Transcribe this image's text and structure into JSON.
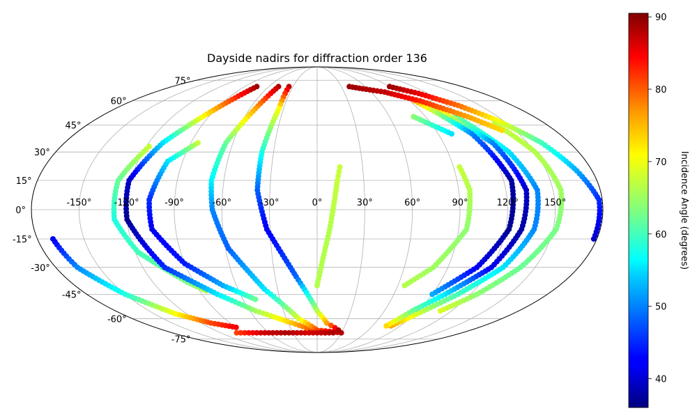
{
  "chart_data": {
    "type": "scatter",
    "projection": "mollweide",
    "title": "Dayside nadirs for diffraction order 136",
    "x_ticks": [
      "-150°",
      "-120°",
      "-90°",
      "-60°",
      "-30°",
      "0°",
      "30°",
      "60°",
      "90°",
      "120°",
      "150°"
    ],
    "x_tick_values": [
      -150,
      -120,
      -90,
      -60,
      -30,
      0,
      30,
      60,
      90,
      120,
      150
    ],
    "y_ticks": [
      "75°",
      "60°",
      "45°",
      "30°",
      "15°",
      "0°",
      "-15°",
      "-30°",
      "-45°",
      "-60°",
      "-75°"
    ],
    "y_tick_values": [
      75,
      60,
      45,
      30,
      15,
      0,
      -15,
      -30,
      -45,
      -60,
      -75
    ],
    "grid": true,
    "colorbar": {
      "label": "Incidence Angle (degrees)",
      "min": 36,
      "max": 90.5,
      "ticks": [
        "40",
        "50",
        "60",
        "70",
        "80",
        "90"
      ],
      "tick_values": [
        40,
        50,
        60,
        70,
        80,
        90
      ],
      "colormap": "jet"
    },
    "series": [
      {
        "points": [
          {
            "lon": 0,
            "lat": -40,
            "inc": 66
          },
          {
            "lon": 8,
            "lat": -10,
            "inc": 66
          },
          {
            "lon": 13,
            "lat": 15,
            "inc": 67
          },
          {
            "lon": 15,
            "lat": 22,
            "inc": 67
          }
        ]
      },
      {
        "points": [
          {
            "lon": 65,
            "lat": -40,
            "inc": 66
          },
          {
            "lon": 80,
            "lat": -30,
            "inc": 65
          },
          {
            "lon": 95,
            "lat": -10,
            "inc": 64
          },
          {
            "lon": 97,
            "lat": 10,
            "inc": 66
          },
          {
            "lon": 94,
            "lat": 22,
            "inc": 67
          }
        ]
      },
      {
        "points": [
          {
            "lon": -118,
            "lat": 33,
            "inc": 67
          },
          {
            "lon": -128,
            "lat": 15,
            "inc": 62
          },
          {
            "lon": -128,
            "lat": -5,
            "inc": 58
          },
          {
            "lon": -118,
            "lat": -22,
            "inc": 60
          },
          {
            "lon": -95,
            "lat": -38,
            "inc": 63
          },
          {
            "lon": -85,
            "lat": -43,
            "inc": 66
          }
        ]
      },
      {
        "points": [
          {
            "lon": -85,
            "lat": 35,
            "inc": 67
          },
          {
            "lon": -100,
            "lat": 25,
            "inc": 55
          },
          {
            "lon": -106,
            "lat": 5,
            "inc": 45
          },
          {
            "lon": -105,
            "lat": -10,
            "inc": 42
          },
          {
            "lon": -90,
            "lat": -28,
            "inc": 44
          },
          {
            "lon": -70,
            "lat": -40,
            "inc": 52
          },
          {
            "lon": -50,
            "lat": -48,
            "inc": 62
          }
        ]
      },
      {
        "points": [
          {
            "lon": -75,
            "lat": 70,
            "inc": 89
          },
          {
            "lon": -90,
            "lat": 55,
            "inc": 75
          },
          {
            "lon": -110,
            "lat": 35,
            "inc": 55
          },
          {
            "lon": -121,
            "lat": 15,
            "inc": 40
          },
          {
            "lon": -120,
            "lat": -5,
            "inc": 37
          },
          {
            "lon": -105,
            "lat": -30,
            "inc": 45
          },
          {
            "lon": -78,
            "lat": -45,
            "inc": 55
          },
          {
            "lon": -55,
            "lat": -55,
            "inc": 65
          },
          {
            "lon": -30,
            "lat": -62,
            "inc": 72
          },
          {
            "lon": -5,
            "lat": -68,
            "inc": 80
          },
          {
            "lon": 10,
            "lat": -70,
            "inc": 88
          }
        ]
      },
      {
        "points": [
          {
            "lon": -48,
            "lat": 70,
            "inc": 88
          },
          {
            "lon": -55,
            "lat": 55,
            "inc": 75
          },
          {
            "lon": -65,
            "lat": 35,
            "inc": 62
          },
          {
            "lon": -68,
            "lat": 15,
            "inc": 56
          },
          {
            "lon": -66,
            "lat": 0,
            "inc": 50
          },
          {
            "lon": -58,
            "lat": -20,
            "inc": 48
          },
          {
            "lon": -40,
            "lat": -42,
            "inc": 55
          },
          {
            "lon": -18,
            "lat": -60,
            "inc": 68
          },
          {
            "lon": 0,
            "lat": -68,
            "inc": 80
          },
          {
            "lon": 30,
            "lat": -70,
            "inc": 88
          }
        ]
      },
      {
        "points": [
          {
            "lon": -35,
            "lat": 70,
            "inc": 87
          },
          {
            "lon": -34,
            "lat": 55,
            "inc": 70
          },
          {
            "lon": -38,
            "lat": 30,
            "inc": 58
          },
          {
            "lon": -38,
            "lat": 10,
            "inc": 48
          },
          {
            "lon": -32,
            "lat": -10,
            "inc": 42
          },
          {
            "lon": -15,
            "lat": -35,
            "inc": 48
          },
          {
            "lon": 0,
            "lat": -55,
            "inc": 66
          },
          {
            "lon": 10,
            "lat": -63,
            "inc": 75
          },
          {
            "lon": 25,
            "lat": -68,
            "inc": 88
          }
        ]
      },
      {
        "points": [
          {
            "lon": -100,
            "lat": -70,
            "inc": 80
          },
          {
            "lon": -70,
            "lat": -70,
            "inc": 86
          },
          {
            "lon": -40,
            "lat": -70,
            "inc": 88
          },
          {
            "lon": -10,
            "lat": -70,
            "inc": 86
          },
          {
            "lon": 20,
            "lat": -70,
            "inc": 88
          }
        ]
      },
      {
        "points": [
          {
            "lon": -170,
            "lat": -15,
            "inc": 42
          },
          {
            "lon": -165,
            "lat": -30,
            "inc": 50
          },
          {
            "lon": -150,
            "lat": -45,
            "inc": 58
          },
          {
            "lon": -130,
            "lat": -57,
            "inc": 70
          },
          {
            "lon": -110,
            "lat": -63,
            "inc": 80
          },
          {
            "lon": -90,
            "lat": -66,
            "inc": 84
          }
        ]
      },
      {
        "points": [
          {
            "lon": 90,
            "lat": 70,
            "inc": 89
          },
          {
            "lon": 110,
            "lat": 65,
            "inc": 85
          },
          {
            "lon": 130,
            "lat": 57,
            "inc": 78
          },
          {
            "lon": 145,
            "lat": 48,
            "inc": 70
          },
          {
            "lon": 160,
            "lat": 35,
            "inc": 60
          },
          {
            "lon": 170,
            "lat": 20,
            "inc": 52
          },
          {
            "lon": 178,
            "lat": 5,
            "inc": 45
          },
          {
            "lon": 178,
            "lat": -15,
            "inc": 40
          }
        ]
      },
      {
        "points": [
          {
            "lon": 140,
            "lat": 46,
            "inc": 67
          },
          {
            "lon": 150,
            "lat": 30,
            "inc": 66
          },
          {
            "lon": 155,
            "lat": 10,
            "inc": 65
          },
          {
            "lon": 152,
            "lat": -10,
            "inc": 63
          },
          {
            "lon": 140,
            "lat": -30,
            "inc": 62
          },
          {
            "lon": 125,
            "lat": -45,
            "inc": 64
          },
          {
            "lon": 110,
            "lat": -55,
            "inc": 68
          }
        ]
      },
      {
        "points": [
          {
            "lon": 115,
            "lat": 50,
            "inc": 62
          },
          {
            "lon": 132,
            "lat": 30,
            "inc": 55
          },
          {
            "lon": 140,
            "lat": 10,
            "inc": 50
          },
          {
            "lon": 138,
            "lat": -10,
            "inc": 50
          },
          {
            "lon": 128,
            "lat": -30,
            "inc": 55
          },
          {
            "lon": 110,
            "lat": -45,
            "inc": 60
          },
          {
            "lon": 95,
            "lat": -55,
            "inc": 66
          },
          {
            "lon": 80,
            "lat": -65,
            "inc": 75
          }
        ]
      },
      {
        "points": [
          {
            "lon": 100,
            "lat": 60,
            "inc": 80
          },
          {
            "lon": 125,
            "lat": 35,
            "inc": 50
          },
          {
            "lon": 133,
            "lat": 10,
            "inc": 40
          },
          {
            "lon": 130,
            "lat": -10,
            "inc": 38
          },
          {
            "lon": 120,
            "lat": -30,
            "inc": 42
          },
          {
            "lon": 100,
            "lat": -45,
            "inc": 55
          },
          {
            "lon": 85,
            "lat": -55,
            "inc": 62
          },
          {
            "lon": 75,
            "lat": -65,
            "inc": 72
          }
        ]
      },
      {
        "points": [
          {
            "lon": 95,
            "lat": 60,
            "inc": 75
          },
          {
            "lon": 115,
            "lat": 40,
            "inc": 50
          },
          {
            "lon": 125,
            "lat": 15,
            "inc": 38
          },
          {
            "lon": 122,
            "lat": -10,
            "inc": 37
          },
          {
            "lon": 110,
            "lat": -30,
            "inc": 42
          },
          {
            "lon": 90,
            "lat": -45,
            "inc": 52
          }
        ]
      },
      {
        "points": [
          {
            "lon": 80,
            "lat": 50,
            "inc": 64
          },
          {
            "lon": 100,
            "lat": 40,
            "inc": 55
          }
        ]
      },
      {
        "points": [
          {
            "lon": 40,
            "lat": 70,
            "inc": 89
          },
          {
            "lon": 75,
            "lat": 66,
            "inc": 87
          },
          {
            "lon": 100,
            "lat": 60,
            "inc": 82
          },
          {
            "lon": 125,
            "lat": 50,
            "inc": 75
          },
          {
            "lon": 140,
            "lat": 42,
            "inc": 72
          }
        ]
      }
    ]
  }
}
